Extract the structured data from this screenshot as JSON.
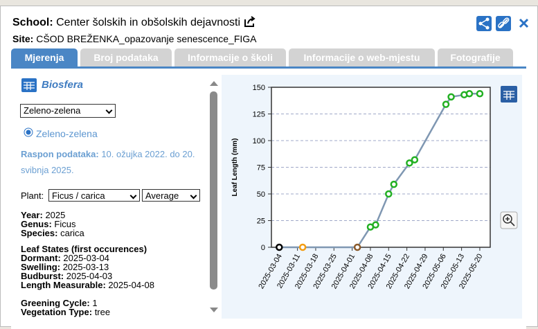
{
  "header": {
    "school_label": "School:",
    "school": "Center šolskih in obšolskih dejavnosti",
    "site_label": "Site:",
    "site": "CŠOD BREŽENKA_opazovanje senescence_FIGA"
  },
  "tabs": [
    "Mjerenja",
    "Broj podataka",
    "Informacije o školi",
    "Informacije o web-mjestu",
    "Fotografije"
  ],
  "left_panel": {
    "title": "Biosfera",
    "measure_select": "Zeleno-zelena",
    "radio": "Zeleno-zelena",
    "range_label": "Raspon podataka:",
    "range": "10. ožujka 2022. do 20. svibnja 2025.",
    "plant_label": "Plant:",
    "plant_select": "Ficus / carica",
    "stat_select": "Average",
    "fields": [
      [
        "Year:",
        "2025"
      ],
      [
        "Genus:",
        "Ficus"
      ],
      [
        "Species:",
        "carica"
      ]
    ],
    "states_title": "Leaf States (first occurences)",
    "states": [
      [
        "Dormant:",
        "2025-03-04"
      ],
      [
        "Swelling:",
        "2025-03-13"
      ],
      [
        "Budburst:",
        "2025-04-03"
      ],
      [
        "Length Measurable:",
        "2025-04-08"
      ]
    ],
    "extra": [
      [
        "Greening Cycle:",
        "1"
      ],
      [
        "Vegetation Type:",
        "tree"
      ]
    ]
  },
  "chart_data": {
    "type": "line",
    "y_label": "Leaf Length (mm)",
    "x": [
      "2025-03-04",
      "2025-03-13",
      "2025-04-03",
      "2025-04-08",
      "2025-04-10",
      "2025-04-15",
      "2025-04-17",
      "2025-04-23",
      "2025-04-25",
      "2025-05-07",
      "2025-05-09",
      "2025-05-14",
      "2025-05-16",
      "2025-05-20"
    ],
    "values": [
      0,
      0,
      0,
      19,
      21,
      50,
      59,
      79,
      82,
      134,
      141,
      143,
      144,
      144
    ],
    "color": "#7f97b2",
    "point_colors": [
      "#000000",
      "#f39c12",
      "#8b5a2b",
      "#22b022",
      "#22b022",
      "#22b022",
      "#22b022",
      "#22b022",
      "#22b022",
      "#22b022",
      "#22b022",
      "#22b022",
      "#22b022",
      "#22b022"
    ],
    "xlim": [
      "2025-03-01",
      "2025-05-24"
    ],
    "xticks": [
      "2025-03-04",
      "2025-03-11",
      "2025-03-18",
      "2025-03-25",
      "2025-04-01",
      "2025-04-08",
      "2025-04-15",
      "2025-04-22",
      "2025-04-29",
      "2025-05-06",
      "2025-05-13",
      "2025-05-20"
    ],
    "ylim": [
      0,
      150
    ],
    "yticks": [
      0,
      25,
      50,
      75,
      100,
      125,
      150
    ],
    "grid": true
  }
}
